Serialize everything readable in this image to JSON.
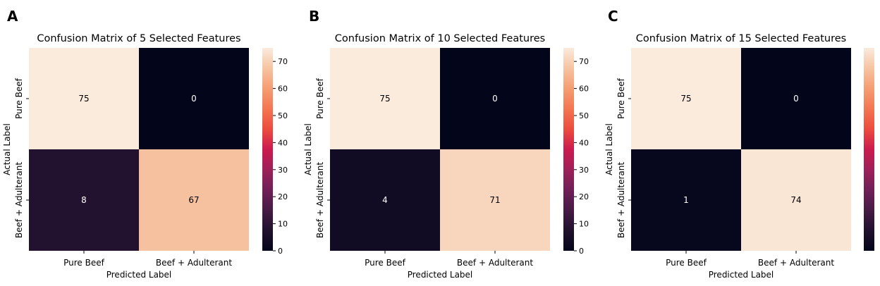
{
  "chart_data": [
    {
      "panel_letter": "A",
      "type": "heatmap",
      "title": "Confusion Matrix of 5 Selected Features",
      "xlabel": "Predicted Label",
      "ylabel": "Actual Label",
      "row_labels": [
        "Pure Beef",
        "Beef + Adulterant"
      ],
      "col_labels": [
        "Pure Beef",
        "Beef + Adulterant"
      ],
      "values": [
        [
          75,
          0
        ],
        [
          8,
          67
        ]
      ],
      "colorbar": {
        "range": [
          0,
          75
        ],
        "ticks": [
          0,
          10,
          20,
          30,
          40,
          50,
          60,
          70
        ]
      }
    },
    {
      "panel_letter": "B",
      "type": "heatmap",
      "title": "Confusion Matrix of 10 Selected Features",
      "xlabel": "Predicted Label",
      "ylabel": "Actual Label",
      "row_labels": [
        "Pure Beef",
        "Beef + Adulterant"
      ],
      "col_labels": [
        "Pure Beef",
        "Beef + Adulterant"
      ],
      "values": [
        [
          75,
          0
        ],
        [
          4,
          71
        ]
      ],
      "colorbar": {
        "range": [
          0,
          75
        ],
        "ticks": [
          0,
          10,
          20,
          30,
          40,
          50,
          60,
          70
        ]
      }
    },
    {
      "panel_letter": "C",
      "type": "heatmap",
      "title": "Confusion Matrix of 15 Selected Features",
      "xlabel": "Predicted Label",
      "ylabel": "Actual Label",
      "row_labels": [
        "Pure Beef",
        "Beef + Adulterant"
      ],
      "col_labels": [
        "Pure Beef",
        "Beef + Adulterant"
      ],
      "values": [
        [
          75,
          0
        ],
        [
          1,
          74
        ]
      ],
      "colorbar": {
        "range": [
          0,
          75
        ],
        "ticks": []
      }
    }
  ],
  "colormap": "rocket",
  "colors": {
    "text_on_light": "#000000",
    "text_on_dark": "#ffffff"
  }
}
